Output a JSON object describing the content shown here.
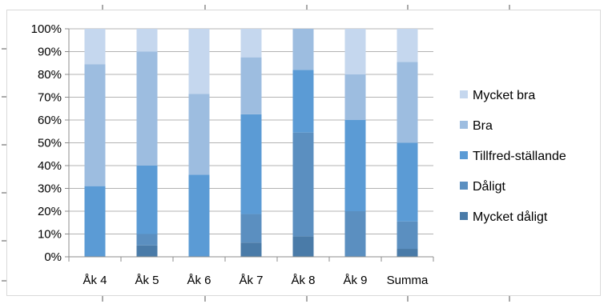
{
  "chart_data": {
    "type": "bar",
    "stacked": true,
    "percent": true,
    "categories": [
      "Åk 4",
      "Åk 5",
      "Åk 6",
      "Åk 7",
      "Åk 8",
      "Åk 9",
      "Summa"
    ],
    "ylim": [
      0,
      100
    ],
    "ytick_labels": [
      "0%",
      "10%",
      "20%",
      "30%",
      "40%",
      "50%",
      "60%",
      "70%",
      "80%",
      "90%",
      "100%"
    ],
    "grid": true,
    "legend_position": "right",
    "series": [
      {
        "name": "Mycket dåligt",
        "color": "#4a7ba8",
        "values": [
          0,
          5,
          0,
          6.25,
          9,
          0,
          3.5
        ]
      },
      {
        "name": "Dåligt",
        "color": "#5b8fc0",
        "values": [
          0,
          5,
          0,
          12.5,
          45.5,
          20,
          12
        ]
      },
      {
        "name": "Tillfred-ställande",
        "color": "#5b9bd5",
        "values": [
          31,
          30,
          36,
          43.75,
          27.5,
          40,
          34.5
        ]
      },
      {
        "name": "Bra",
        "color": "#9dbde0",
        "values": [
          53.5,
          50,
          35.5,
          25,
          18,
          20,
          35.5
        ]
      },
      {
        "name": "Mycket bra",
        "color": "#c5d7ee",
        "values": [
          15.5,
          10,
          28.5,
          12.5,
          0,
          20,
          14.5
        ]
      }
    ]
  }
}
